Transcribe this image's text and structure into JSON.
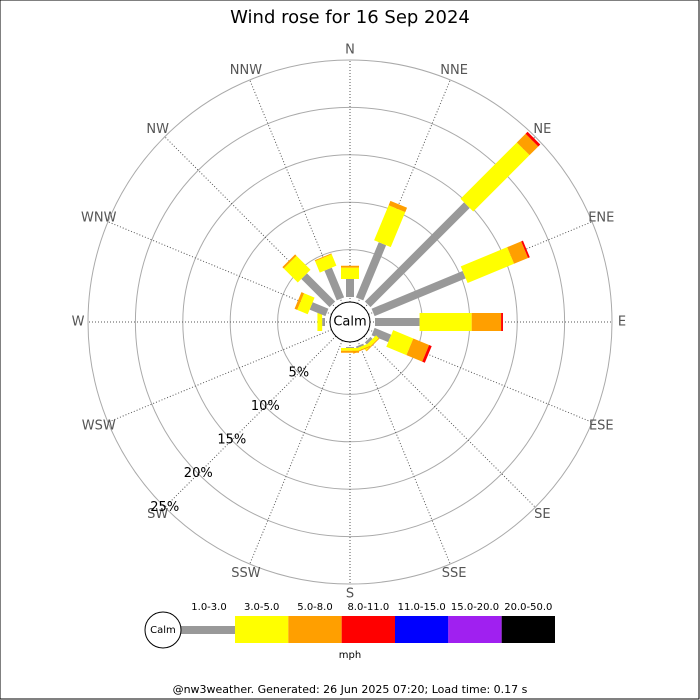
{
  "chart_data": {
    "type": "wind_rose",
    "title": "Wind rose for 16 Sep 2024",
    "categories": [
      "N",
      "NNE",
      "NE",
      "ENE",
      "E",
      "ESE",
      "SE",
      "SSE",
      "S",
      "SSW",
      "SW",
      "WSW",
      "W",
      "WNW",
      "NW",
      "NNW"
    ],
    "series": [
      {
        "name": "1.0-3.0",
        "color": "#999999",
        "values": [
          1.9,
          6.3,
          14.8,
          10.4,
          4.7,
          1.9,
          0.3,
          0.2,
          0.1,
          0,
          0,
          0,
          0.3,
          1.8,
          4.2,
          3.4
        ]
      },
      {
        "name": "3.0-5.0",
        "color": "#ffff00",
        "values": [
          1.2,
          4.0,
          8.4,
          5.3,
          5.5,
          2.3,
          0.4,
          0.3,
          0.3,
          0,
          0,
          0,
          0.5,
          1.2,
          2.1,
          1.3
        ]
      },
      {
        "name": "5.0-8.0",
        "color": "#ff9f00",
        "values": [
          0.2,
          0.5,
          1.3,
          1.6,
          3.1,
          1.8,
          0.1,
          0.1,
          0.2,
          0,
          0,
          0,
          0,
          0.3,
          0.2,
          0.1
        ]
      },
      {
        "name": "8.0-11.0",
        "color": "#ff0000",
        "values": [
          0,
          0,
          0.3,
          0.2,
          0.2,
          0.3,
          0,
          0,
          0,
          0,
          0,
          0,
          0,
          0,
          0,
          0
        ]
      },
      {
        "name": "11.0-15.0",
        "color": "#0000ff",
        "values": [
          0,
          0,
          0,
          0,
          0,
          0,
          0,
          0,
          0,
          0,
          0,
          0,
          0,
          0,
          0,
          0
        ]
      },
      {
        "name": "15.0-20.0",
        "color": "#a020f0",
        "values": [
          0,
          0,
          0,
          0,
          0,
          0,
          0,
          0,
          0,
          0,
          0,
          0,
          0,
          0,
          0,
          0
        ]
      },
      {
        "name": "20.0-50.0",
        "color": "#000000",
        "values": [
          0,
          0,
          0,
          0,
          0,
          0,
          0,
          0,
          0,
          0,
          0,
          0,
          0,
          0,
          0,
          0
        ]
      }
    ],
    "ylim": [
      0,
      25
    ],
    "yticks": [
      {
        "value": 5,
        "label": "5%"
      },
      {
        "value": 10,
        "label": "10%"
      },
      {
        "value": 15,
        "label": "15%"
      },
      {
        "value": 20,
        "label": "20%"
      },
      {
        "value": 25,
        "label": "25%"
      }
    ],
    "calm_label": "Calm",
    "legend_unit": "mph",
    "footer": "@nw3weather. Generated: 26 Jun 2025 07:20; Load time: 0.17 s"
  }
}
